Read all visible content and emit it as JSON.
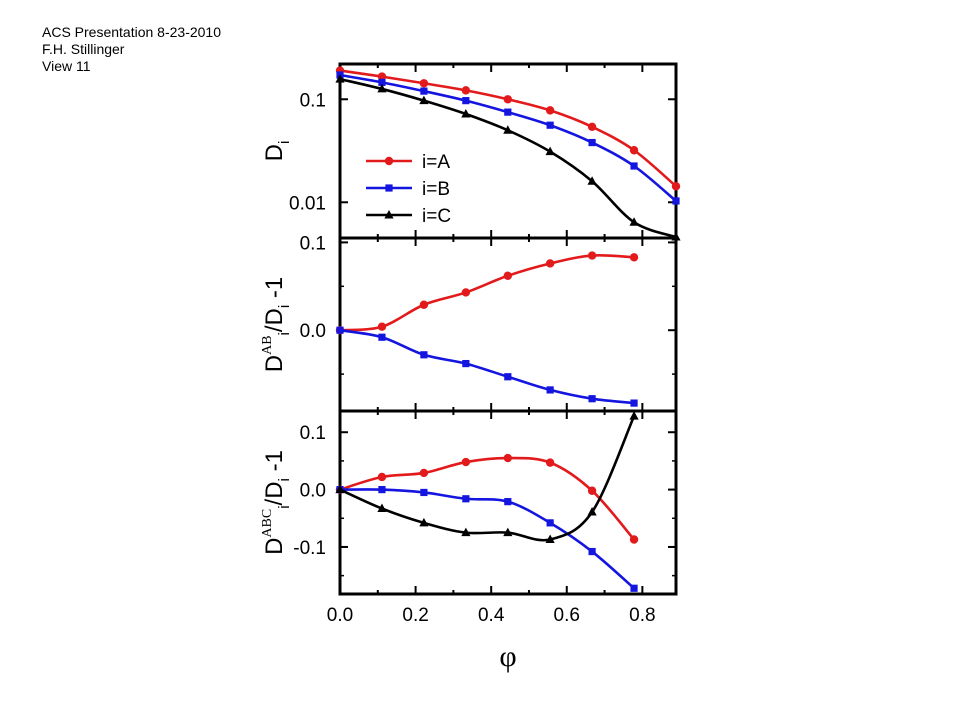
{
  "header": {
    "line1": "ACS Presentation 8-23-2010",
    "line2": "F.H. Stillinger",
    "line3": "View 11"
  },
  "colors": {
    "A": "#e31a1c",
    "B": "#1515e0",
    "C": "#000000"
  },
  "chart_data": [
    {
      "type": "line",
      "panel": "top",
      "yscale": "log",
      "ylabel": {
        "main": "D",
        "sub": "i"
      },
      "xlim": [
        0,
        0.889
      ],
      "ylim": [
        0.0045,
        0.22
      ],
      "yticks": [
        0.1,
        0.01
      ],
      "ytick_labels": [
        "0.1",
        "0.01"
      ],
      "legend": {
        "position": "bottom-left",
        "entries": [
          "i=A",
          "i=B",
          "i=C"
        ]
      },
      "series": [
        {
          "name": "i=A",
          "key": "A",
          "marker": "circle",
          "x": [
            0,
            0.111,
            0.222,
            0.333,
            0.444,
            0.556,
            0.667,
            0.778,
            0.889
          ],
          "y": [
            0.19,
            0.166,
            0.143,
            0.122,
            0.1,
            0.078,
            0.054,
            0.032,
            0.0143
          ]
        },
        {
          "name": "i=B",
          "key": "B",
          "marker": "square",
          "x": [
            0,
            0.111,
            0.222,
            0.333,
            0.444,
            0.556,
            0.667,
            0.778,
            0.889
          ],
          "y": [
            0.172,
            0.146,
            0.12,
            0.097,
            0.075,
            0.056,
            0.038,
            0.0225,
            0.0103
          ]
        },
        {
          "name": "i=C",
          "key": "C",
          "marker": "triangle",
          "x": [
            0,
            0.111,
            0.222,
            0.333,
            0.444,
            0.556,
            0.667,
            0.778,
            0.889
          ],
          "y": [
            0.157,
            0.126,
            0.097,
            0.072,
            0.05,
            0.031,
            0.016,
            0.0064,
            0.0046
          ]
        }
      ]
    },
    {
      "type": "line",
      "panel": "middle",
      "ylabel": {
        "main": "D",
        "sup": "AB",
        "sub": "i",
        "rest": "/D",
        "sub2": "i",
        "tail": " -1"
      },
      "xlim": [
        0,
        0.889
      ],
      "ylim": [
        -0.092,
        0.105
      ],
      "yticks": [
        0.1,
        0.0
      ],
      "ytick_labels": [
        "0.1",
        "0.0"
      ],
      "series": [
        {
          "key": "A",
          "marker": "circle",
          "x": [
            0,
            0.111,
            0.222,
            0.333,
            0.444,
            0.556,
            0.667,
            0.778
          ],
          "y": [
            0,
            0.004,
            0.029,
            0.043,
            0.062,
            0.076,
            0.085,
            0.083
          ]
        },
        {
          "key": "B",
          "marker": "square",
          "x": [
            0,
            0.111,
            0.222,
            0.333,
            0.444,
            0.556,
            0.667,
            0.778
          ],
          "y": [
            0,
            -0.008,
            -0.028,
            -0.038,
            -0.053,
            -0.068,
            -0.078,
            -0.083
          ]
        }
      ]
    },
    {
      "type": "line",
      "panel": "bottom",
      "ylabel": {
        "main": "D",
        "sup": "ABC",
        "sub": "i",
        "rest": "/D",
        "sub2": "i",
        "tail": " -1"
      },
      "xlabel": "φ",
      "xlim": [
        0,
        0.889
      ],
      "ylim": [
        -0.182,
        0.137
      ],
      "yticks": [
        0.1,
        0.0,
        -0.1
      ],
      "ytick_labels": [
        "0.1",
        "0.0",
        "-0.1"
      ],
      "xticks": [
        0.0,
        0.2,
        0.4,
        0.6,
        0.8
      ],
      "xtick_labels": [
        "0.0",
        "0.2",
        "0.4",
        "0.6",
        "0.8"
      ],
      "series": [
        {
          "key": "A",
          "marker": "circle",
          "x": [
            0,
            0.111,
            0.222,
            0.333,
            0.444,
            0.556,
            0.667,
            0.778
          ],
          "y": [
            0,
            0.022,
            0.029,
            0.048,
            0.055,
            0.047,
            -0.002,
            -0.087
          ]
        },
        {
          "key": "B",
          "marker": "square",
          "x": [
            0,
            0.111,
            0.222,
            0.333,
            0.444,
            0.556,
            0.667,
            0.778
          ],
          "y": [
            0,
            0.0,
            -0.005,
            -0.016,
            -0.021,
            -0.058,
            -0.108,
            -0.172
          ]
        },
        {
          "key": "C",
          "marker": "triangle",
          "x": [
            0,
            0.111,
            0.222,
            0.333,
            0.444,
            0.556,
            0.667,
            0.778
          ],
          "y": [
            0,
            -0.033,
            -0.058,
            -0.075,
            -0.075,
            -0.087,
            -0.039,
            0.128
          ]
        }
      ]
    }
  ]
}
